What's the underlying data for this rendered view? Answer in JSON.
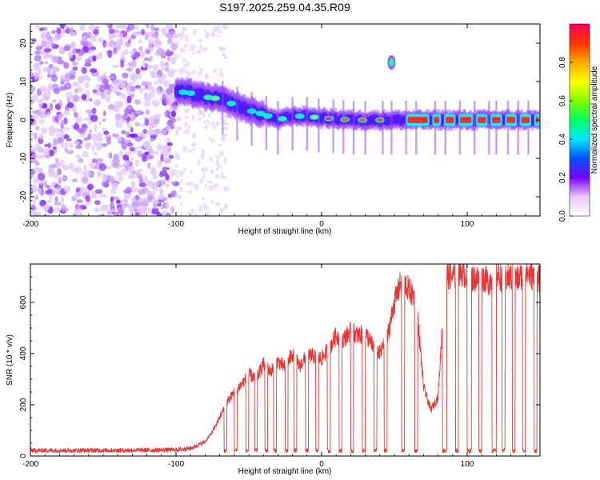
{
  "title": "S197.2025.259.04.35.R09",
  "chart_data": [
    {
      "type": "heatmap",
      "name": "spectrogram",
      "xlabel": "Height of straight line (km)",
      "ylabel": "Frequency (Hz)",
      "xlim": [
        -200,
        150
      ],
      "ylim": [
        -25,
        25
      ],
      "xticks": [
        -200,
        -100,
        0,
        100
      ],
      "yticks": [
        -20,
        -10,
        0,
        10,
        20
      ],
      "colorbar": {
        "label": "Normalized spectral amplitude",
        "range": [
          0,
          1
        ],
        "ticks": [
          0.0,
          0.2,
          0.4,
          0.6,
          0.8
        ]
      },
      "ridge": [
        {
          "x": -100,
          "f": 7.5
        },
        {
          "x": -90,
          "f": 7
        },
        {
          "x": -80,
          "f": 6
        },
        {
          "x": -70,
          "f": 5.5
        },
        {
          "x": -60,
          "f": 4
        },
        {
          "x": -50,
          "f": 2.5
        },
        {
          "x": -40,
          "f": 1.5
        },
        {
          "x": -30,
          "f": 0
        },
        {
          "x": -20,
          "f": 1
        },
        {
          "x": -10,
          "f": 1
        },
        {
          "x": 0,
          "f": 0.5
        },
        {
          "x": 10,
          "f": 0.3
        },
        {
          "x": 20,
          "f": 0
        },
        {
          "x": 150,
          "f": 0
        }
      ],
      "isolated_peak": {
        "x": 48,
        "f": 15
      }
    },
    {
      "type": "line",
      "name": "snr",
      "xlabel": "Height of straight line (km)",
      "ylabel": "SNR (10 * v/v)",
      "xlim": [
        -200,
        150
      ],
      "ylim": [
        0,
        750
      ],
      "xticks": [
        -200,
        -100,
        0,
        100
      ],
      "yticks": [
        0,
        200,
        400,
        600
      ],
      "color": "#ee3333",
      "series": [
        {
          "name": "SNR",
          "x": [
            -200,
            -150,
            -100,
            -90,
            -80,
            -75,
            -70,
            -65,
            -60,
            -55,
            -50,
            -45,
            -40,
            -35,
            -30,
            -25,
            -20,
            -15,
            -10,
            -5,
            0,
            5,
            10,
            15,
            20,
            25,
            30,
            35,
            40,
            45,
            50,
            55,
            60,
            65,
            70,
            75,
            80,
            85,
            90,
            95,
            100,
            105,
            110,
            115,
            120,
            125,
            130,
            135,
            140,
            145,
            150
          ],
          "y": [
            22,
            22,
            24,
            30,
            55,
            95,
            150,
            210,
            250,
            280,
            320,
            300,
            360,
            330,
            370,
            345,
            400,
            350,
            395,
            390,
            380,
            420,
            470,
            455,
            490,
            470,
            480,
            430,
            400,
            460,
            600,
            690,
            650,
            610,
            270,
            180,
            230,
            710,
            700,
            720,
            705,
            690,
            700,
            680,
            710,
            690,
            700,
            690,
            720,
            700,
            690
          ]
        }
      ]
    }
  ]
}
